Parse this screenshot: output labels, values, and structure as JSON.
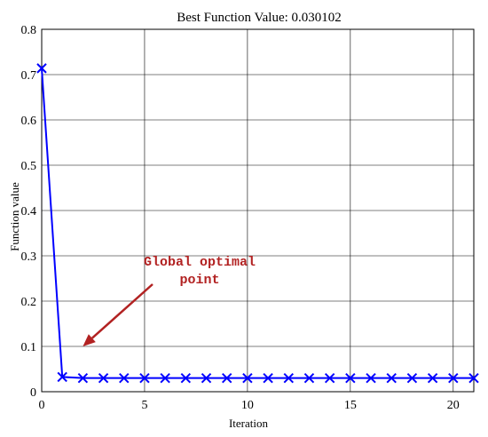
{
  "chart_data": {
    "type": "line",
    "title": "Best Function Value: 0.030102",
    "xlabel": "Iteration",
    "ylabel": "Function value",
    "xlim": [
      0,
      21
    ],
    "ylim": [
      0,
      0.8
    ],
    "x_ticks": [
      0,
      5,
      10,
      15,
      20
    ],
    "y_ticks": [
      0,
      0.1,
      0.2,
      0.3,
      0.4,
      0.5,
      0.6,
      0.7,
      0.8
    ],
    "x_tick_labels": [
      "0",
      "5",
      "10",
      "15",
      "20"
    ],
    "y_tick_labels": [
      "0",
      "0.1",
      "0.2",
      "0.3",
      "0.4",
      "0.5",
      "0.6",
      "0.7",
      "0.8"
    ],
    "grid": true,
    "series": [
      {
        "x": [
          0,
          1,
          2,
          3,
          4,
          5,
          6,
          7,
          8,
          9,
          10,
          11,
          12,
          13,
          14,
          15,
          16,
          17,
          18,
          19,
          20,
          21
        ],
        "y": [
          0.714,
          0.0325,
          0.0301,
          0.0301,
          0.0301,
          0.0301,
          0.0301,
          0.0301,
          0.0301,
          0.0301,
          0.0301,
          0.0301,
          0.0301,
          0.0301,
          0.0301,
          0.0301,
          0.0301,
          0.0301,
          0.0301,
          0.0301,
          0.0301,
          0.0301
        ],
        "color": "#0000ff",
        "marker": "x"
      }
    ],
    "annotation": {
      "line1": "Global optimal",
      "line2": "point",
      "color": "#b22222",
      "points_to": [
        2,
        0.1
      ]
    }
  }
}
